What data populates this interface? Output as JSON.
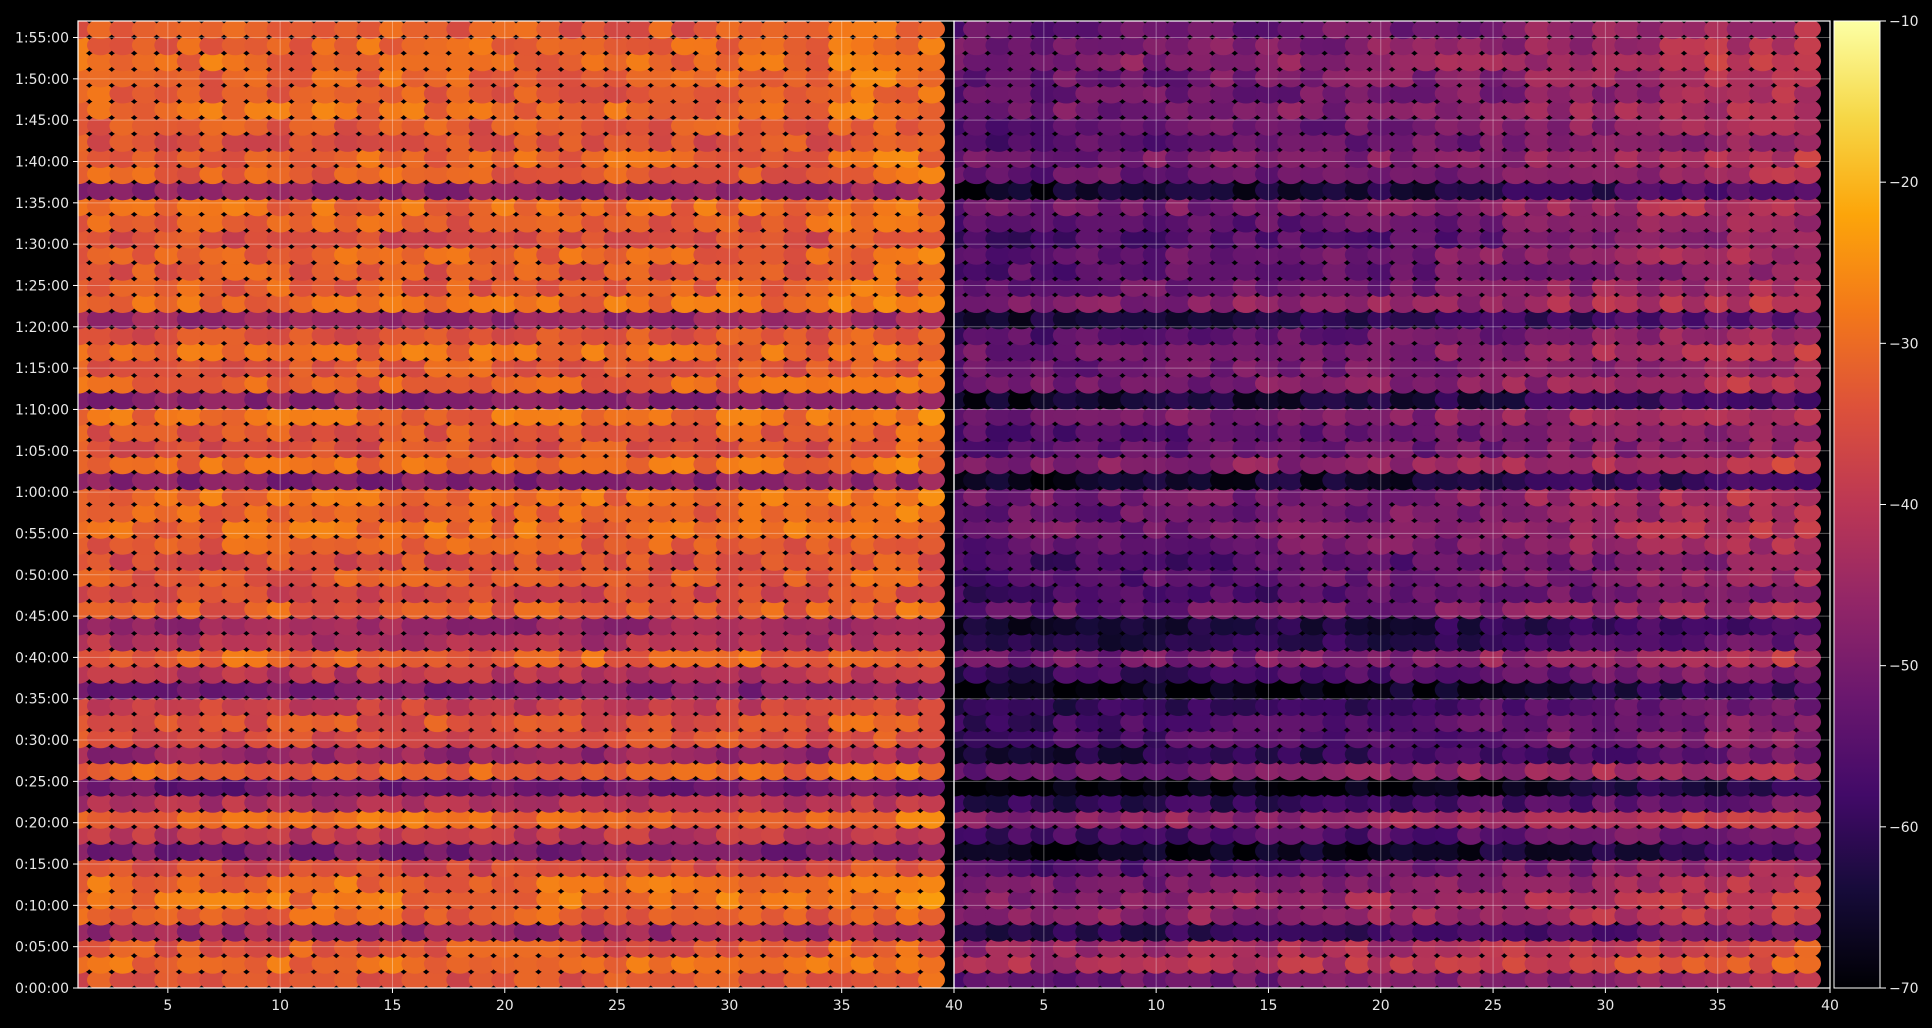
{
  "chart_data": {
    "type": "heatmap",
    "title": "",
    "panels": [
      {
        "name": "",
        "xlim": [
          1,
          40
        ]
      },
      {
        "name": "",
        "xlim": [
          1,
          40
        ]
      }
    ],
    "x_ticks": [
      "5",
      "10",
      "15",
      "20",
      "25",
      "30",
      "35",
      "40"
    ],
    "y_ticks": [
      "0:00:00",
      "0:05:00",
      "0:10:00",
      "0:15:00",
      "0:20:00",
      "0:25:00",
      "0:30:00",
      "0:35:00",
      "0:40:00",
      "0:45:00",
      "0:50:00",
      "0:55:00",
      "1:00:00",
      "1:05:00",
      "1:10:00",
      "1:15:00",
      "1:20:00",
      "1:25:00",
      "1:30:00",
      "1:35:00",
      "1:40:00",
      "1:45:00",
      "1:50:00",
      "1:55:00"
    ],
    "ylim_seconds": [
      0,
      7020
    ],
    "colorbar": {
      "colormap": "inferno",
      "range": [
        -70,
        -10
      ],
      "ticks": [
        "−10",
        "−20",
        "−30",
        "−40",
        "−50",
        "−60",
        "−70"
      ]
    },
    "row_levels": {
      "left": [
        -34,
        -30,
        -33,
        -45,
        -32,
        -29,
        -30,
        -36,
        -50,
        -40,
        -30,
        -42,
        -52,
        -31,
        -46,
        -35,
        -34,
        -38,
        -50,
        -40,
        -31,
        -42,
        -45,
        -32,
        -36,
        -33,
        -35,
        -32,
        -30,
        -31,
        -30,
        -48,
        -30,
        -34,
        -33,
        -30,
        -47,
        -31,
        -33,
        -30,
        -34,
        -46,
        -30,
        -32,
        -33,
        -31,
        -35,
        -32,
        -30,
        -47,
        -32,
        -31,
        -34,
        -33,
        -30,
        -32,
        -31,
        -30,
        -31,
        -33
      ],
      "right": [
        -50,
        -40,
        -42,
        -58,
        -45,
        -44,
        -48,
        -52,
        -66,
        -55,
        -45,
        -58,
        -68,
        -48,
        -60,
        -54,
        -55,
        -58,
        -66,
        -56,
        -48,
        -60,
        -62,
        -50,
        -55,
        -52,
        -54,
        -50,
        -48,
        -50,
        -48,
        -64,
        -46,
        -52,
        -52,
        -48,
        -63,
        -48,
        -50,
        -48,
        -52,
        -62,
        -46,
        -50,
        -52,
        -50,
        -54,
        -52,
        -48,
        -63,
        -50,
        -48,
        -52,
        -51,
        -48,
        -50,
        -49,
        -46,
        -48,
        -50
      ]
    },
    "grid": true
  }
}
